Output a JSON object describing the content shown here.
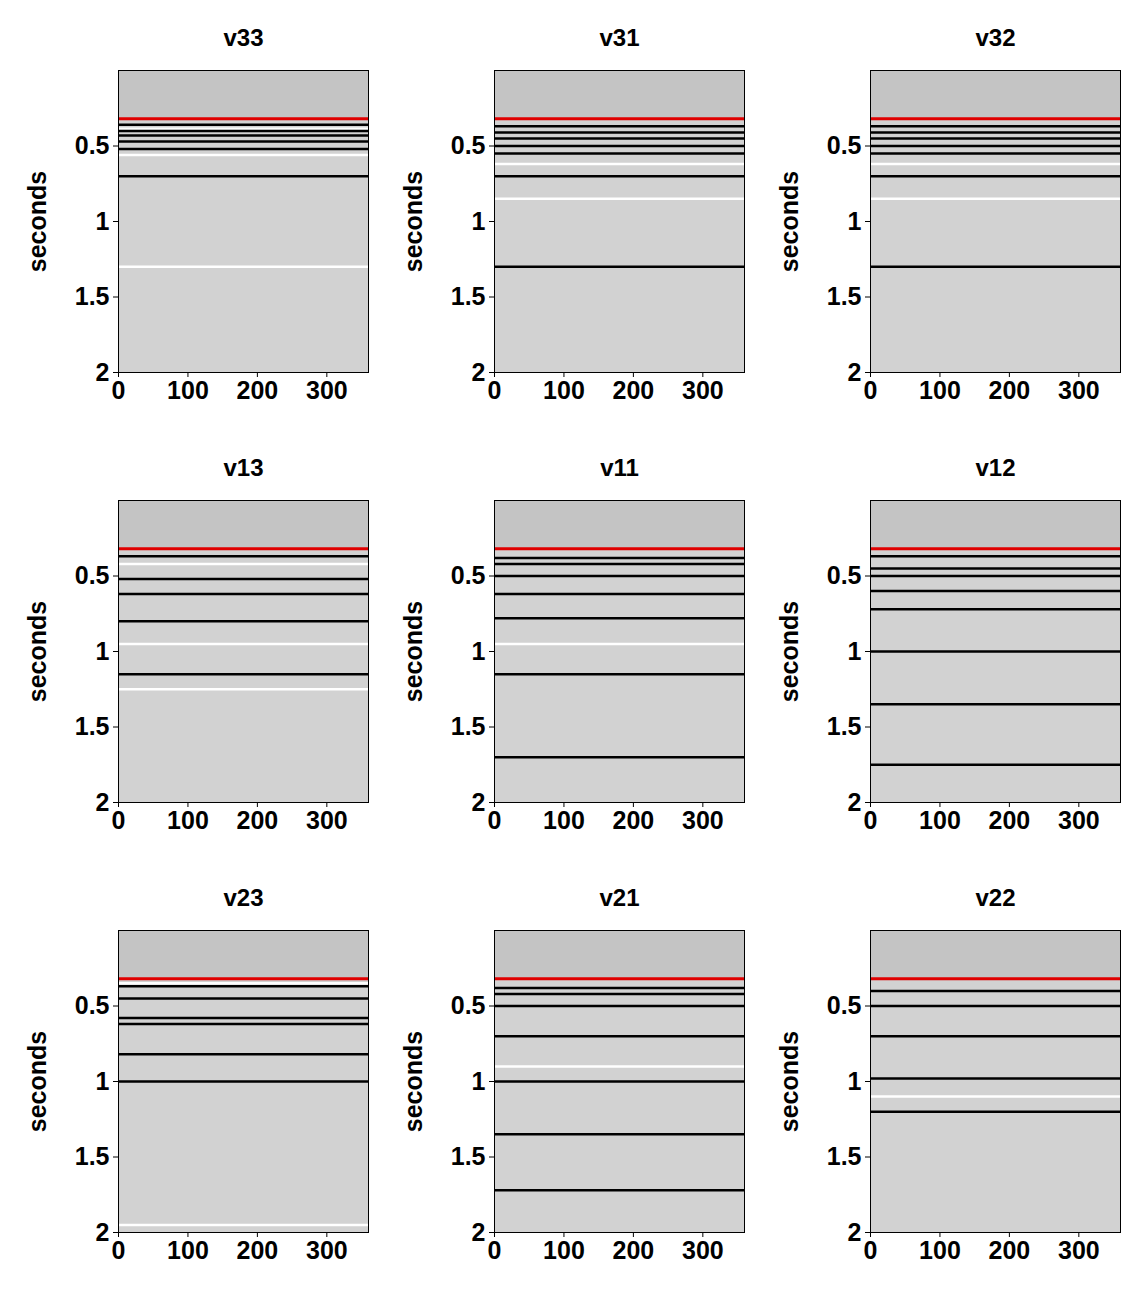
{
  "chart_data": [
    {
      "type": "seismic",
      "title": "v33",
      "ylabel": "seconds",
      "xlim": [
        0,
        360
      ],
      "ylim": [
        0,
        2
      ],
      "xticks": [
        0,
        100,
        200,
        300
      ],
      "yticks": [
        0.5,
        1,
        1.5,
        2
      ],
      "color": "#d2d2d2",
      "line": {
        "t": 0.32,
        "color": "#e00000"
      },
      "reflectors": [
        {
          "t": 0.36,
          "color": "black"
        },
        {
          "t": 0.385,
          "color": "white"
        },
        {
          "t": 0.4,
          "color": "black"
        },
        {
          "t": 0.43,
          "color": "black"
        },
        {
          "t": 0.47,
          "color": "black"
        },
        {
          "t": 0.52,
          "color": "black"
        },
        {
          "t": 0.56,
          "color": "white"
        },
        {
          "t": 0.7,
          "color": "black"
        },
        {
          "t": 1.3,
          "color": "white"
        }
      ]
    },
    {
      "type": "seismic",
      "title": "v31",
      "ylabel": "seconds",
      "xlim": [
        0,
        360
      ],
      "ylim": [
        0,
        2
      ],
      "xticks": [
        0,
        100,
        200,
        300
      ],
      "yticks": [
        0.5,
        1,
        1.5,
        2
      ],
      "color": "#d2d2d2",
      "line": {
        "t": 0.32,
        "color": "#e00000"
      },
      "reflectors": [
        {
          "t": 0.37,
          "color": "black"
        },
        {
          "t": 0.41,
          "color": "black"
        },
        {
          "t": 0.45,
          "color": "black"
        },
        {
          "t": 0.5,
          "color": "black"
        },
        {
          "t": 0.55,
          "color": "black"
        },
        {
          "t": 0.62,
          "color": "white"
        },
        {
          "t": 0.7,
          "color": "black"
        },
        {
          "t": 0.85,
          "color": "white"
        },
        {
          "t": 1.3,
          "color": "black"
        }
      ]
    },
    {
      "type": "seismic",
      "title": "v32",
      "ylabel": "seconds",
      "xlim": [
        0,
        360
      ],
      "ylim": [
        0,
        2
      ],
      "xticks": [
        0,
        100,
        200,
        300
      ],
      "yticks": [
        0.5,
        1,
        1.5,
        2
      ],
      "color": "#d2d2d2",
      "line": {
        "t": 0.32,
        "color": "#e00000"
      },
      "reflectors": [
        {
          "t": 0.37,
          "color": "black"
        },
        {
          "t": 0.41,
          "color": "black"
        },
        {
          "t": 0.45,
          "color": "black"
        },
        {
          "t": 0.5,
          "color": "black"
        },
        {
          "t": 0.55,
          "color": "black"
        },
        {
          "t": 0.62,
          "color": "white"
        },
        {
          "t": 0.7,
          "color": "black"
        },
        {
          "t": 0.85,
          "color": "white"
        },
        {
          "t": 1.3,
          "color": "black"
        }
      ]
    },
    {
      "type": "seismic",
      "title": "v13",
      "ylabel": "seconds",
      "xlim": [
        0,
        360
      ],
      "ylim": [
        0,
        2
      ],
      "xticks": [
        0,
        100,
        200,
        300
      ],
      "yticks": [
        0.5,
        1,
        1.5,
        2
      ],
      "color": "#d2d2d2",
      "line": {
        "t": 0.32,
        "color": "#e00000"
      },
      "reflectors": [
        {
          "t": 0.37,
          "color": "black"
        },
        {
          "t": 0.42,
          "color": "white"
        },
        {
          "t": 0.52,
          "color": "black"
        },
        {
          "t": 0.62,
          "color": "black"
        },
        {
          "t": 0.8,
          "color": "black"
        },
        {
          "t": 0.95,
          "color": "white"
        },
        {
          "t": 1.15,
          "color": "black"
        },
        {
          "t": 1.25,
          "color": "white"
        }
      ]
    },
    {
      "type": "seismic",
      "title": "v11",
      "ylabel": "seconds",
      "xlim": [
        0,
        360
      ],
      "ylim": [
        0,
        2
      ],
      "xticks": [
        0,
        100,
        200,
        300
      ],
      "yticks": [
        0.5,
        1,
        1.5,
        2
      ],
      "color": "#d2d2d2",
      "line": {
        "t": 0.32,
        "color": "#e00000"
      },
      "reflectors": [
        {
          "t": 0.38,
          "color": "black"
        },
        {
          "t": 0.42,
          "color": "black"
        },
        {
          "t": 0.5,
          "color": "black"
        },
        {
          "t": 0.62,
          "color": "black"
        },
        {
          "t": 0.78,
          "color": "black"
        },
        {
          "t": 0.95,
          "color": "white"
        },
        {
          "t": 1.15,
          "color": "black"
        },
        {
          "t": 1.7,
          "color": "black"
        }
      ]
    },
    {
      "type": "seismic",
      "title": "v12",
      "ylabel": "seconds",
      "xlim": [
        0,
        360
      ],
      "ylim": [
        0,
        2
      ],
      "xticks": [
        0,
        100,
        200,
        300
      ],
      "yticks": [
        0.5,
        1,
        1.5,
        2
      ],
      "color": "#d2d2d2",
      "line": {
        "t": 0.32,
        "color": "#e00000"
      },
      "reflectors": [
        {
          "t": 0.37,
          "color": "black"
        },
        {
          "t": 0.45,
          "color": "black"
        },
        {
          "t": 0.5,
          "color": "black"
        },
        {
          "t": 0.6,
          "color": "black"
        },
        {
          "t": 0.72,
          "color": "black"
        },
        {
          "t": 1.0,
          "color": "black"
        },
        {
          "t": 1.35,
          "color": "black"
        },
        {
          "t": 1.75,
          "color": "black"
        }
      ]
    },
    {
      "type": "seismic",
      "title": "v23",
      "ylabel": "seconds",
      "xlim": [
        0,
        360
      ],
      "ylim": [
        0,
        2
      ],
      "xticks": [
        0,
        100,
        200,
        300
      ],
      "yticks": [
        0.5,
        1,
        1.5,
        2
      ],
      "color": "#d2d2d2",
      "line": {
        "t": 0.32,
        "color": "#e00000"
      },
      "reflectors": [
        {
          "t": 0.35,
          "color": "white"
        },
        {
          "t": 0.37,
          "color": "black"
        },
        {
          "t": 0.45,
          "color": "black"
        },
        {
          "t": 0.58,
          "color": "black"
        },
        {
          "t": 0.62,
          "color": "black"
        },
        {
          "t": 0.82,
          "color": "black"
        },
        {
          "t": 1.0,
          "color": "black"
        },
        {
          "t": 1.95,
          "color": "white"
        }
      ]
    },
    {
      "type": "seismic",
      "title": "v21",
      "ylabel": "seconds",
      "xlim": [
        0,
        360
      ],
      "ylim": [
        0,
        2
      ],
      "xticks": [
        0,
        100,
        200,
        300
      ],
      "yticks": [
        0.5,
        1,
        1.5,
        2
      ],
      "color": "#d2d2d2",
      "line": {
        "t": 0.32,
        "color": "#e00000"
      },
      "reflectors": [
        {
          "t": 0.38,
          "color": "black"
        },
        {
          "t": 0.42,
          "color": "black"
        },
        {
          "t": 0.5,
          "color": "black"
        },
        {
          "t": 0.7,
          "color": "black"
        },
        {
          "t": 0.9,
          "color": "white"
        },
        {
          "t": 1.0,
          "color": "black"
        },
        {
          "t": 1.35,
          "color": "black"
        },
        {
          "t": 1.72,
          "color": "black"
        }
      ]
    },
    {
      "type": "seismic",
      "title": "v22",
      "ylabel": "seconds",
      "xlim": [
        0,
        360
      ],
      "ylim": [
        0,
        2
      ],
      "xticks": [
        0,
        100,
        200,
        300
      ],
      "yticks": [
        0.5,
        1,
        1.5,
        2
      ],
      "color": "#d2d2d2",
      "line": {
        "t": 0.32,
        "color": "#e00000"
      },
      "reflectors": [
        {
          "t": 0.4,
          "color": "black"
        },
        {
          "t": 0.5,
          "color": "black"
        },
        {
          "t": 0.7,
          "color": "black"
        },
        {
          "t": 0.98,
          "color": "black"
        },
        {
          "t": 1.1,
          "color": "white"
        },
        {
          "t": 1.2,
          "color": "black"
        }
      ]
    }
  ]
}
